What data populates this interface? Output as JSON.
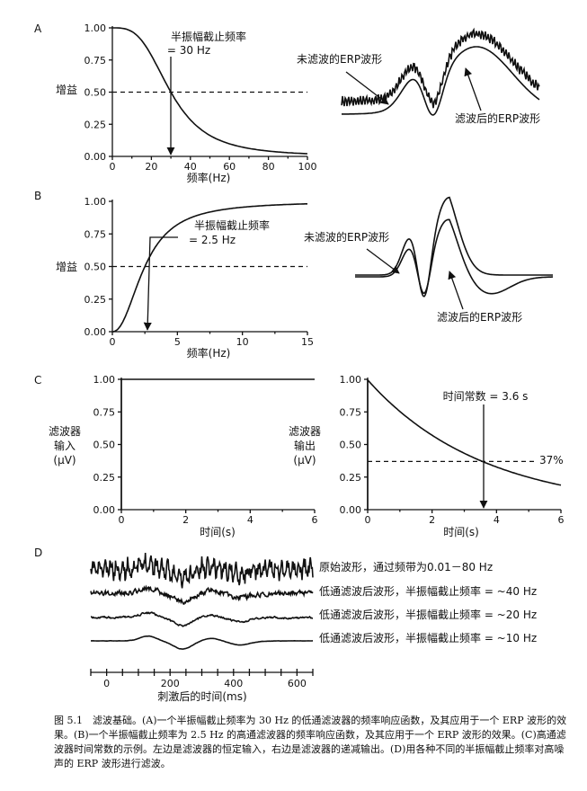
{
  "panels": {
    "A": {
      "label": "A",
      "ylabel": "增益",
      "xlabel": "频率(Hz)",
      "cutoff_text": [
        "半振幅截止频率",
        "= 30 Hz"
      ],
      "erp_unfiltered": "未滤波的ERP波形",
      "erp_filtered": "滤波后的ERP波形"
    },
    "B": {
      "label": "B",
      "ylabel": "增益",
      "xlabel": "频率(Hz)",
      "cutoff_text": [
        "半振幅截止频率",
        "= 2.5 Hz"
      ],
      "erp_unfiltered": "未滤波的ERP波形",
      "erp_filtered": "滤波后的ERP波形"
    },
    "C": {
      "label": "C",
      "input_ylabel": [
        "滤波器",
        "输入",
        "(μV)"
      ],
      "output_ylabel": [
        "滤波器",
        "输出",
        "(μV)"
      ],
      "xlabel": "时间(s)",
      "time_constant_text": "时间常数 = 3.6 s",
      "percent_text": "37%"
    },
    "D": {
      "label": "D",
      "xlabel": "刺激后的时间(ms)",
      "traces": [
        "原始波形，通过频带为0.01－80 Hz",
        "低通滤波后波形，半振幅截止频率 = ~40 Hz",
        "低通滤波后波形，半振幅截止频率 = ~20 Hz",
        "低通滤波后波形，半振幅截止频率 = ~10 Hz"
      ]
    }
  },
  "chart_data": [
    {
      "type": "line",
      "panel": "A",
      "x": [
        0,
        10,
        20,
        30,
        40,
        50,
        60,
        70,
        80,
        90,
        100
      ],
      "series": [
        {
          "values": [
            1.0,
            0.94,
            0.79,
            0.5,
            0.28,
            0.14,
            0.06,
            0.025,
            0.01,
            0.003,
            0.0
          ]
        }
      ],
      "xlabel": "频率(Hz)",
      "ylabel": "增益",
      "xlim": [
        0,
        100
      ],
      "ylim": [
        0,
        1
      ],
      "x_ticks": [
        "0",
        "20",
        "40",
        "60",
        "80",
        "100"
      ],
      "y_ticks": [
        "0.00",
        "0.25",
        "0.50",
        "0.75",
        "1.00"
      ],
      "cutoff": 30
    },
    {
      "type": "line",
      "panel": "B",
      "x": [
        0,
        0.5,
        1,
        1.5,
        2,
        2.5,
        3,
        4,
        5,
        6,
        8,
        10,
        15
      ],
      "series": [
        {
          "values": [
            0.0,
            0.1,
            0.2,
            0.32,
            0.43,
            0.5,
            0.64,
            0.82,
            0.93,
            0.97,
            0.995,
            1.0,
            1.0
          ]
        }
      ],
      "xlabel": "频率(Hz)",
      "ylabel": "增益",
      "xlim": [
        0,
        15
      ],
      "ylim": [
        0,
        1
      ],
      "x_ticks": [
        "0",
        "5",
        "10",
        "15"
      ],
      "y_ticks": [
        "0.00",
        "0.25",
        "0.50",
        "0.75",
        "1.00"
      ],
      "cutoff": 2.5
    },
    {
      "type": "line",
      "panel": "C-input",
      "x": [
        0,
        0.02,
        0.05,
        6
      ],
      "series": [
        {
          "values": [
            0.0,
            0.0,
            1.0,
            1.0
          ]
        }
      ],
      "xlabel": "时间(s)",
      "xlim": [
        0,
        6
      ],
      "ylim": [
        0,
        1
      ],
      "x_ticks": [
        "0",
        "2",
        "4",
        "6"
      ],
      "y_ticks": [
        "0.00",
        "0.25",
        "0.50",
        "0.75",
        "1.00"
      ]
    },
    {
      "type": "line",
      "panel": "C-output",
      "x": [
        0,
        0.5,
        1,
        1.5,
        2,
        2.5,
        3,
        3.6,
        4,
        4.5,
        5,
        5.5,
        6
      ],
      "series": [
        {
          "values": [
            1.0,
            0.87,
            0.76,
            0.66,
            0.57,
            0.5,
            0.43,
            0.37,
            0.33,
            0.29,
            0.25,
            0.22,
            0.19
          ]
        }
      ],
      "xlabel": "时间(s)",
      "xlim": [
        0,
        6
      ],
      "ylim": [
        0,
        1
      ],
      "x_ticks": [
        "0",
        "2",
        "4",
        "6"
      ],
      "y_ticks": [
        "0.00",
        "0.25",
        "0.50",
        "0.75",
        "1.00"
      ],
      "time_constant": 3.6,
      "level": 0.37
    },
    {
      "type": "line",
      "panel": "D",
      "xlabel": "刺激后的时间(ms)",
      "xlim": [
        -50,
        650
      ],
      "x_ticks": [
        "0",
        "200",
        "400",
        "600"
      ]
    }
  ],
  "caption": "图 5.1　滤波基础。(A)一个半振幅截止频率为 30 Hz 的低通滤波器的频率响应函数，及其应用于一个 ERP 波形的效果。(B)一个半振幅截止频率为 2.5 Hz 的高通滤波器的频率响应函数，及其应用于一个 ERP 波形的效果。(C)高通滤波器时间常数的示例。左边是滤波器的恒定输入，右边是滤波器的递减输出。(D)用各种不同的半振幅截止频率对高噪声的 ERP 波形进行滤波。"
}
